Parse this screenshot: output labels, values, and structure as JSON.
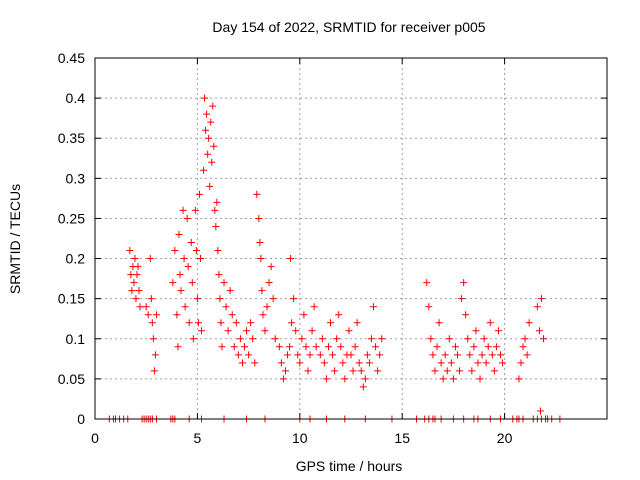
{
  "chart_data": {
    "type": "scatter",
    "title": "Day 154 of 2022, SRMTID for receiver p005",
    "xlabel": "GPS time / hours",
    "ylabel": "SRMTID / TECUs",
    "xlim": [
      0,
      25
    ],
    "ylim": [
      0,
      0.45
    ],
    "xticks": [
      0,
      5,
      10,
      15,
      20
    ],
    "yticks": [
      0,
      0.05,
      0.1,
      0.15,
      0.2,
      0.25,
      0.3,
      0.35,
      0.4,
      0.45
    ],
    "grid": true,
    "legend": "none",
    "marker": "plus",
    "series": [
      {
        "name": "SRMTID",
        "color": "#ff0000",
        "points": [
          [
            1.7,
            0.21
          ],
          [
            1.75,
            0.18
          ],
          [
            1.8,
            0.16
          ],
          [
            1.85,
            0.19
          ],
          [
            1.9,
            0.17
          ],
          [
            1.95,
            0.2
          ],
          [
            2.0,
            0.15
          ],
          [
            2.05,
            0.18
          ],
          [
            2.1,
            0.19
          ],
          [
            2.15,
            0.16
          ],
          [
            2.2,
            0.14
          ],
          [
            2.5,
            0.14
          ],
          [
            2.6,
            0.13
          ],
          [
            2.7,
            0.2
          ],
          [
            2.75,
            0.15
          ],
          [
            2.8,
            0.12
          ],
          [
            2.85,
            0.1
          ],
          [
            2.9,
            0.06
          ],
          [
            2.95,
            0.08
          ],
          [
            3.0,
            0.13
          ],
          [
            3.8,
            0.17
          ],
          [
            3.9,
            0.21
          ],
          [
            4.0,
            0.13
          ],
          [
            4.05,
            0.09
          ],
          [
            4.1,
            0.23
          ],
          [
            4.15,
            0.18
          ],
          [
            4.2,
            0.16
          ],
          [
            4.3,
            0.26
          ],
          [
            4.35,
            0.2
          ],
          [
            4.4,
            0.14
          ],
          [
            4.5,
            0.25
          ],
          [
            4.55,
            0.19
          ],
          [
            4.6,
            0.12
          ],
          [
            4.7,
            0.22
          ],
          [
            4.75,
            0.17
          ],
          [
            4.8,
            0.1
          ],
          [
            4.9,
            0.26
          ],
          [
            4.95,
            0.21
          ],
          [
            5.0,
            0.15
          ],
          [
            5.05,
            0.12
          ],
          [
            5.1,
            0.28
          ],
          [
            5.15,
            0.2
          ],
          [
            5.2,
            0.11
          ],
          [
            5.3,
            0.31
          ],
          [
            5.35,
            0.4
          ],
          [
            5.4,
            0.36
          ],
          [
            5.45,
            0.38
          ],
          [
            5.5,
            0.33
          ],
          [
            5.55,
            0.35
          ],
          [
            5.6,
            0.29
          ],
          [
            5.65,
            0.37
          ],
          [
            5.7,
            0.32
          ],
          [
            5.75,
            0.39
          ],
          [
            5.8,
            0.34
          ],
          [
            5.85,
            0.26
          ],
          [
            5.9,
            0.24
          ],
          [
            5.95,
            0.27
          ],
          [
            6.0,
            0.21
          ],
          [
            6.05,
            0.18
          ],
          [
            6.1,
            0.15
          ],
          [
            6.15,
            0.12
          ],
          [
            6.2,
            0.09
          ],
          [
            6.3,
            0.17
          ],
          [
            6.4,
            0.14
          ],
          [
            6.5,
            0.11
          ],
          [
            6.6,
            0.16
          ],
          [
            6.7,
            0.13
          ],
          [
            6.8,
            0.09
          ],
          [
            6.9,
            0.12
          ],
          [
            7.0,
            0.08
          ],
          [
            7.1,
            0.1
          ],
          [
            7.2,
            0.07
          ],
          [
            7.3,
            0.09
          ],
          [
            7.4,
            0.11
          ],
          [
            7.5,
            0.08
          ],
          [
            7.6,
            0.12
          ],
          [
            7.7,
            0.1
          ],
          [
            7.8,
            0.07
          ],
          [
            7.9,
            0.28
          ],
          [
            8.0,
            0.25
          ],
          [
            8.05,
            0.22
          ],
          [
            8.1,
            0.2
          ],
          [
            8.15,
            0.16
          ],
          [
            8.2,
            0.13
          ],
          [
            8.3,
            0.11
          ],
          [
            8.4,
            0.14
          ],
          [
            8.5,
            0.17
          ],
          [
            8.6,
            0.19
          ],
          [
            8.7,
            0.15
          ],
          [
            8.8,
            0.1
          ],
          [
            9.0,
            0.09
          ],
          [
            9.1,
            0.07
          ],
          [
            9.2,
            0.05
          ],
          [
            9.3,
            0.06
          ],
          [
            9.4,
            0.08
          ],
          [
            9.5,
            0.09
          ],
          [
            9.55,
            0.2
          ],
          [
            9.6,
            0.12
          ],
          [
            9.7,
            0.15
          ],
          [
            9.8,
            0.11
          ],
          [
            9.9,
            0.08
          ],
          [
            10.0,
            0.07
          ],
          [
            10.1,
            0.1
          ],
          [
            10.2,
            0.13
          ],
          [
            10.3,
            0.09
          ],
          [
            10.4,
            0.06
          ],
          [
            10.5,
            0.08
          ],
          [
            10.6,
            0.11
          ],
          [
            10.7,
            0.14
          ],
          [
            10.8,
            0.09
          ],
          [
            11.0,
            0.08
          ],
          [
            11.1,
            0.1
          ],
          [
            11.2,
            0.07
          ],
          [
            11.3,
            0.05
          ],
          [
            11.4,
            0.09
          ],
          [
            11.5,
            0.12
          ],
          [
            11.6,
            0.08
          ],
          [
            11.7,
            0.06
          ],
          [
            11.8,
            0.1
          ],
          [
            11.9,
            0.13
          ],
          [
            12.0,
            0.09
          ],
          [
            12.1,
            0.07
          ],
          [
            12.2,
            0.05
          ],
          [
            12.3,
            0.08
          ],
          [
            12.4,
            0.11
          ],
          [
            12.5,
            0.08
          ],
          [
            12.6,
            0.06
          ],
          [
            12.7,
            0.09
          ],
          [
            12.8,
            0.12
          ],
          [
            12.9,
            0.07
          ],
          [
            13.0,
            0.06
          ],
          [
            13.1,
            0.04
          ],
          [
            13.2,
            0.05
          ],
          [
            13.3,
            0.08
          ],
          [
            13.4,
            0.07
          ],
          [
            13.5,
            0.1
          ],
          [
            13.6,
            0.14
          ],
          [
            13.7,
            0.09
          ],
          [
            13.8,
            0.06
          ],
          [
            13.9,
            0.08
          ],
          [
            14.0,
            0.1
          ],
          [
            16.2,
            0.17
          ],
          [
            16.3,
            0.14
          ],
          [
            16.4,
            0.1
          ],
          [
            16.5,
            0.08
          ],
          [
            16.6,
            0.06
          ],
          [
            16.7,
            0.09
          ],
          [
            16.8,
            0.12
          ],
          [
            16.9,
            0.07
          ],
          [
            17.0,
            0.05
          ],
          [
            17.1,
            0.08
          ],
          [
            17.2,
            0.06
          ],
          [
            17.3,
            0.1
          ],
          [
            17.4,
            0.07
          ],
          [
            17.5,
            0.05
          ],
          [
            17.6,
            0.09
          ],
          [
            17.7,
            0.08
          ],
          [
            17.8,
            0.06
          ],
          [
            17.9,
            0.15
          ],
          [
            18.0,
            0.17
          ],
          [
            18.1,
            0.13
          ],
          [
            18.2,
            0.1
          ],
          [
            18.3,
            0.08
          ],
          [
            18.4,
            0.06
          ],
          [
            18.5,
            0.09
          ],
          [
            18.6,
            0.11
          ],
          [
            18.7,
            0.07
          ],
          [
            18.8,
            0.05
          ],
          [
            18.9,
            0.08
          ],
          [
            19.0,
            0.1
          ],
          [
            19.1,
            0.07
          ],
          [
            19.2,
            0.09
          ],
          [
            19.3,
            0.12
          ],
          [
            19.4,
            0.08
          ],
          [
            19.5,
            0.06
          ],
          [
            19.6,
            0.09
          ],
          [
            19.7,
            0.11
          ],
          [
            19.8,
            0.08
          ],
          [
            19.9,
            0.07
          ],
          [
            20.7,
            0.05
          ],
          [
            20.8,
            0.07
          ],
          [
            20.9,
            0.09
          ],
          [
            21.0,
            0.1
          ],
          [
            21.1,
            0.08
          ],
          [
            21.2,
            0.12
          ],
          [
            21.6,
            0.14
          ],
          [
            21.7,
            0.11
          ],
          [
            21.8,
            0.15
          ],
          [
            21.9,
            0.1
          ],
          [
            21.75,
            0.01
          ]
        ]
      }
    ],
    "zero_markers": [
      0.7,
      0.9,
      1.0,
      1.2,
      1.4,
      1.6,
      2.3,
      2.4,
      2.5,
      2.6,
      2.7,
      2.8,
      3.0,
      3.7,
      3.8,
      3.9,
      4.6,
      5.2,
      6.3,
      7.4,
      8.3,
      10.0,
      10.5,
      11.3,
      12.2,
      13.2,
      14.5,
      15.7,
      16.1,
      16.3,
      16.5,
      16.6,
      16.9,
      17.5,
      18.0,
      18.5,
      18.7,
      19.3,
      19.8,
      20.4,
      20.6,
      20.7,
      20.9,
      21.4,
      21.6,
      21.8,
      22.0,
      22.1,
      22.3,
      22.7
    ]
  }
}
